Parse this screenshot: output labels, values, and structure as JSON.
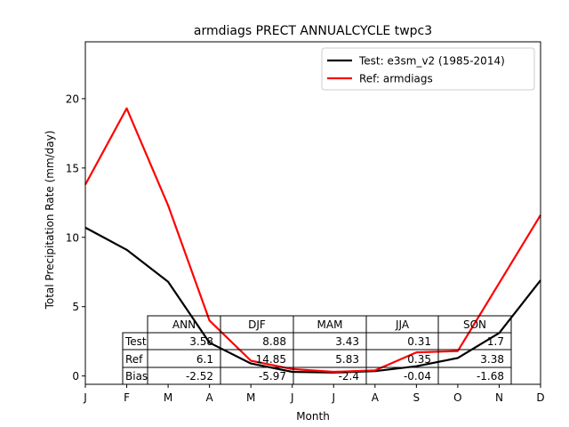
{
  "chart_data": {
    "type": "line",
    "title": "armdiags PRECT ANNUALCYCLE twpc3",
    "xlabel": "Month",
    "ylabel": "Total Precipitation Rate (mm/day)",
    "categories": [
      "J",
      "F",
      "M",
      "A",
      "M",
      "J",
      "J",
      "A",
      "S",
      "O",
      "N",
      "D"
    ],
    "y_ticks": [
      0,
      5,
      10,
      15,
      20
    ],
    "ylim": [
      -0.6,
      24.1
    ],
    "grid": false,
    "legend_position": "top-right",
    "series": [
      {
        "name": "Test: e3sm_v2 (1985-2014)",
        "color": "#000000",
        "values": [
          10.7,
          9.1,
          6.8,
          2.4,
          0.9,
          0.3,
          0.25,
          0.35,
          0.7,
          1.3,
          3.1,
          6.9
        ]
      },
      {
        "name": "Ref: armdiags",
        "color": "#ff0000",
        "values": [
          13.8,
          19.3,
          12.3,
          4.0,
          1.1,
          0.5,
          0.3,
          0.4,
          1.7,
          1.8,
          6.7,
          11.6
        ]
      }
    ],
    "table": {
      "columns": [
        "ANN",
        "DJF",
        "MAM",
        "JJA",
        "SON"
      ],
      "rows": [
        {
          "label": "Test",
          "values": [
            "3.58",
            "8.88",
            "3.43",
            "0.31",
            "1.7"
          ]
        },
        {
          "label": "Ref",
          "values": [
            "6.1",
            "14.85",
            "5.83",
            "0.35",
            "3.38"
          ]
        },
        {
          "label": "Bias",
          "values": [
            "-2.52",
            "-5.97",
            "-2.4",
            "-0.04",
            "-1.68"
          ]
        }
      ]
    }
  }
}
